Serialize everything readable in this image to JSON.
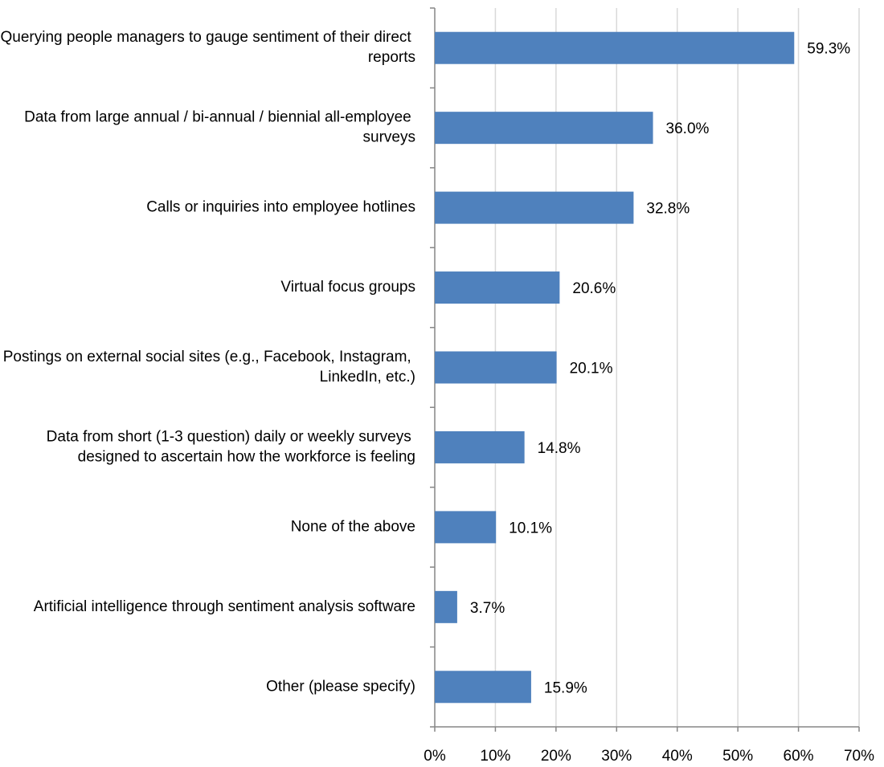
{
  "chart_data": {
    "type": "barh",
    "categories": [
      "Querying people managers to gauge sentiment of their direct reports",
      "Data from large annual / bi-annual / biennial all-employee surveys",
      "Calls or inquiries into employee hotlines",
      "Virtual focus groups",
      "Postings on external social sites (e.g., Facebook, Instagram, LinkedIn, etc.)",
      "Data from short (1-3 question) daily or weekly surveys designed to ascertain how the workforce is feeling",
      "None of the above",
      "Artificial intelligence through sentiment analysis software",
      "Other (please specify)"
    ],
    "values": [
      59.3,
      36.0,
      32.8,
      20.6,
      20.1,
      14.8,
      10.1,
      3.7,
      15.9
    ],
    "value_labels": [
      "59.3%",
      "36.0%",
      "32.8%",
      "20.6%",
      "20.1%",
      "14.8%",
      "10.1%",
      "3.7%",
      "15.9%"
    ],
    "color": "#4f81bd",
    "xlim": [
      0,
      70
    ],
    "xticks": [
      {
        "value": 0,
        "label": "0%"
      },
      {
        "value": 10,
        "label": "10%"
      },
      {
        "value": 20,
        "label": "20%"
      },
      {
        "value": 30,
        "label": "30%"
      },
      {
        "value": 40,
        "label": "40%"
      },
      {
        "value": 50,
        "label": "50%"
      },
      {
        "value": 60,
        "label": "60%"
      },
      {
        "value": 70,
        "label": "70%"
      }
    ],
    "grid": true
  }
}
